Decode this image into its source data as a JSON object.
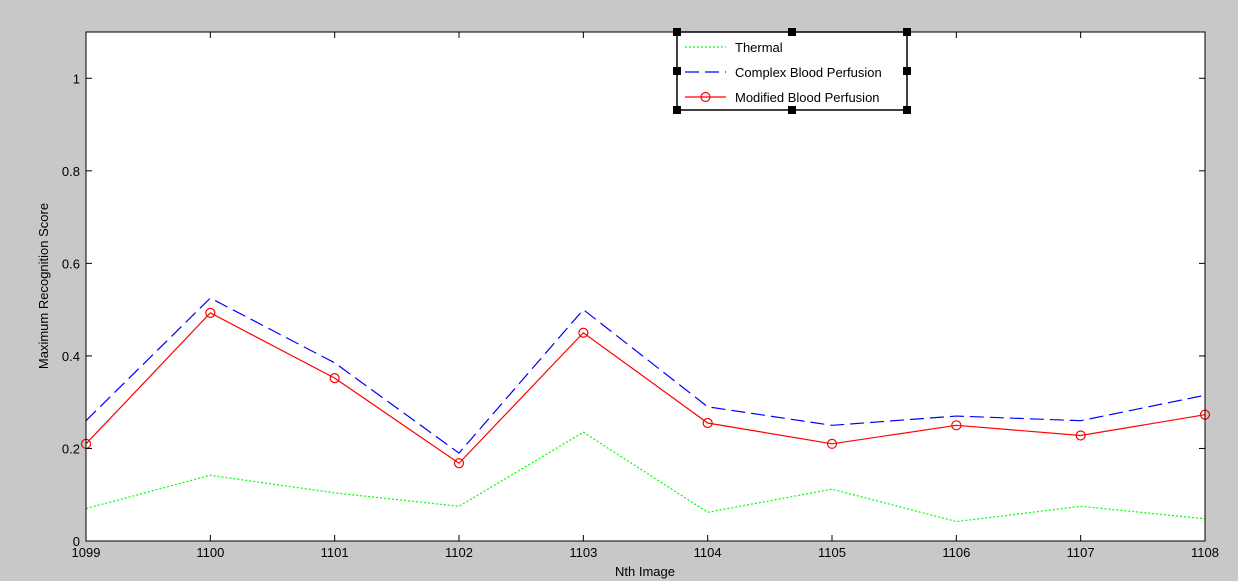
{
  "chart_data": {
    "type": "line",
    "xlabel": "Nth Image",
    "ylabel": "Maximum Recognition Score",
    "xlim": [
      1099,
      1108
    ],
    "ylim": [
      0,
      1.1
    ],
    "x": [
      1099,
      1100,
      1101,
      1102,
      1103,
      1104,
      1105,
      1106,
      1107,
      1108
    ],
    "x_ticks": [
      "1099",
      "1100",
      "1101",
      "1102",
      "1103",
      "1104",
      "1105",
      "1106",
      "1107",
      "1108"
    ],
    "y_tick_values": [
      0,
      0.2,
      0.4,
      0.6,
      0.8,
      1
    ],
    "y_ticks": [
      "0",
      "0.2",
      "0.4",
      "0.6",
      "0.8",
      "1"
    ],
    "grid": false,
    "legend_position": "top-center",
    "series": [
      {
        "name": "Thermal",
        "color": "#00ff00",
        "style": "dotted",
        "values": [
          0.07,
          0.142,
          0.104,
          0.075,
          0.235,
          0.062,
          0.112,
          0.042,
          0.075,
          0.048
        ]
      },
      {
        "name": "Complex Blood Perfusion",
        "color": "#0000ff",
        "style": "dashed",
        "values": [
          0.26,
          0.525,
          0.385,
          0.19,
          0.5,
          0.29,
          0.25,
          0.27,
          0.26,
          0.315
        ]
      },
      {
        "name": "Modified Blood Perfusion",
        "color": "#ff0000",
        "style": "solid-circle",
        "values": [
          0.21,
          0.493,
          0.352,
          0.168,
          0.45,
          0.255,
          0.21,
          0.25,
          0.228,
          0.273
        ]
      }
    ]
  }
}
